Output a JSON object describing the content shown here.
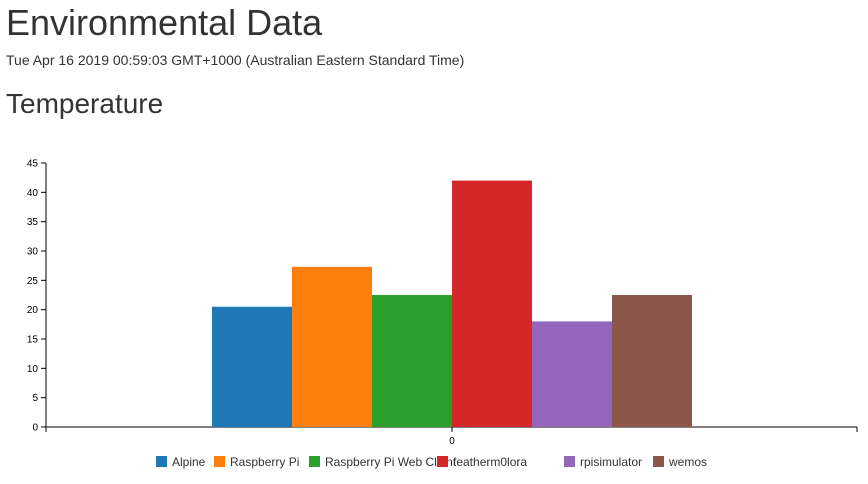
{
  "page": {
    "title": "Environmental Data",
    "timestamp": "Tue Apr 16 2019 00:59:03 GMT+1000 (Australian Eastern Standard Time)",
    "section_title": "Temperature"
  },
  "chart_data": {
    "type": "bar",
    "categories": [
      "0"
    ],
    "ylim": [
      0,
      45
    ],
    "yticks": [
      0,
      5,
      10,
      15,
      20,
      25,
      30,
      35,
      40,
      45
    ],
    "grid": false,
    "legend_position": "bottom-center",
    "series": [
      {
        "name": "Alpine",
        "values": [
          20.5
        ],
        "color": "#1f77b4"
      },
      {
        "name": "Raspberry Pi",
        "values": [
          27.3
        ],
        "color": "#ff7f0e"
      },
      {
        "name": "Raspberry Pi Web Client",
        "values": [
          22.5
        ],
        "color": "#2ca02c"
      },
      {
        "name": "featherm0lora",
        "values": [
          42
        ],
        "color": "#d62728"
      },
      {
        "name": "rpisimulator",
        "values": [
          18
        ],
        "color": "#9467bd"
      },
      {
        "name": "wemos",
        "values": [
          22.5
        ],
        "color": "#8c564b"
      }
    ]
  }
}
